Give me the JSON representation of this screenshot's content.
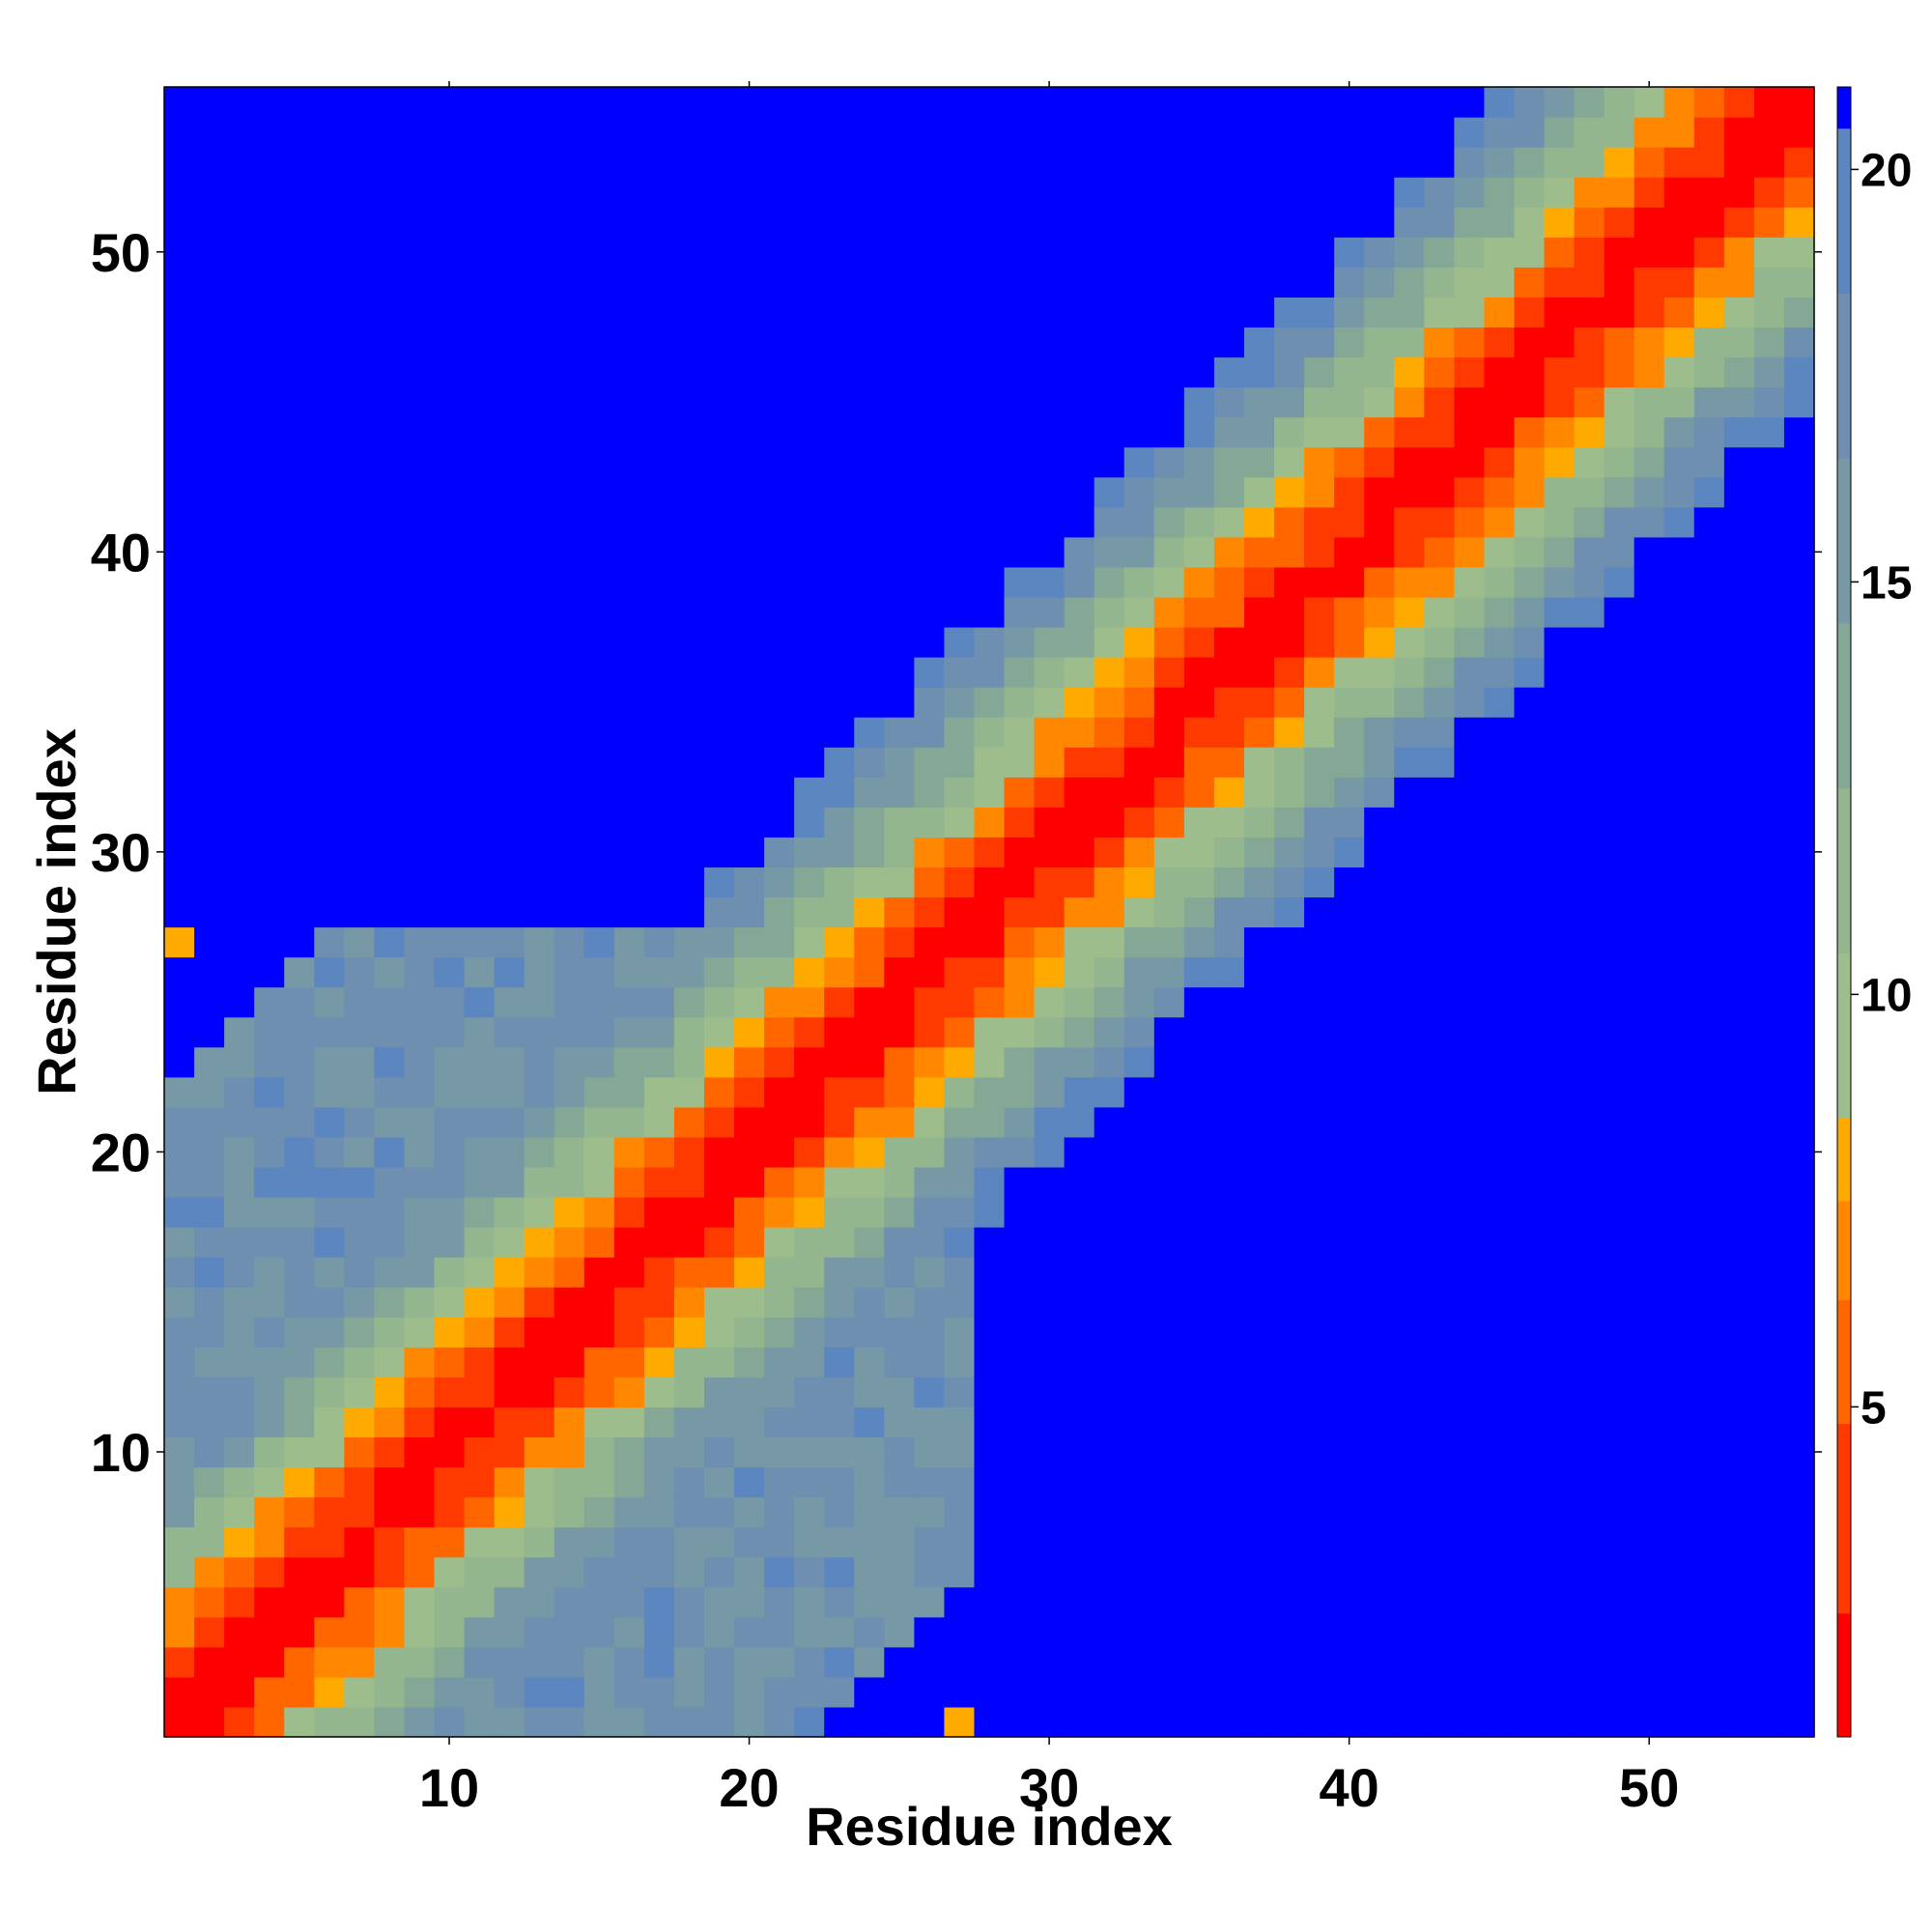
{
  "chart_data": {
    "type": "heatmap",
    "title": "",
    "xlabel": "Residue index",
    "ylabel": "Residue index",
    "x_range": [
      1,
      55
    ],
    "y_range": [
      1,
      55
    ],
    "x_ticks": [
      10,
      20,
      30,
      40,
      50
    ],
    "y_ticks": [
      10,
      20,
      30,
      40,
      50
    ],
    "x_tick_labels": [
      "10",
      "20",
      "30",
      "40",
      "50"
    ],
    "y_tick_labels": [
      "10",
      "20",
      "30",
      "40",
      "50"
    ],
    "grid": false,
    "value_description": "contact distance between residue i and j (diagonal = 0); cells above the colorbar maximum are shown in saturated blue",
    "colorbar": {
      "position": "right",
      "range": [
        1,
        21
      ],
      "ticks": [
        5,
        10,
        15,
        20
      ],
      "tick_labels": [
        "5",
        "10",
        "15",
        "20"
      ],
      "levels": [
        {
          "from": 0,
          "to": 2.5,
          "color": "#ff0000"
        },
        {
          "from": 2.5,
          "to": 4.8,
          "color": "#ff3a00"
        },
        {
          "from": 4.8,
          "to": 6.3,
          "color": "#ff6600"
        },
        {
          "from": 6.3,
          "to": 7.5,
          "color": "#ff8800"
        },
        {
          "from": 7.5,
          "to": 8.5,
          "color": "#ffaa00"
        },
        {
          "from": 8.5,
          "to": 10.5,
          "color": "#9ebd8c"
        },
        {
          "from": 10.5,
          "to": 12.5,
          "color": "#94b68e"
        },
        {
          "from": 12.5,
          "to": 14.5,
          "color": "#85a896"
        },
        {
          "from": 14.5,
          "to": 16.5,
          "color": "#7799a5"
        },
        {
          "from": 16.5,
          "to": 18.5,
          "color": "#6e8fb0"
        },
        {
          "from": 18.5,
          "to": 20.5,
          "color": "#5b86bf"
        },
        {
          "from": 20.5,
          "to": 999,
          "color": "#0000ff"
        }
      ]
    },
    "matrix_rule": {
      "cell_value": "approximately 2.0 * |i - j|, saturating at 21",
      "extra_far_regions": "blue (≥21) beyond the diagonal band",
      "local_contacts": [
        {
          "i": 1,
          "j": 27,
          "value": 8
        },
        {
          "i": 27,
          "j": 1,
          "value": 8
        }
      ]
    }
  }
}
